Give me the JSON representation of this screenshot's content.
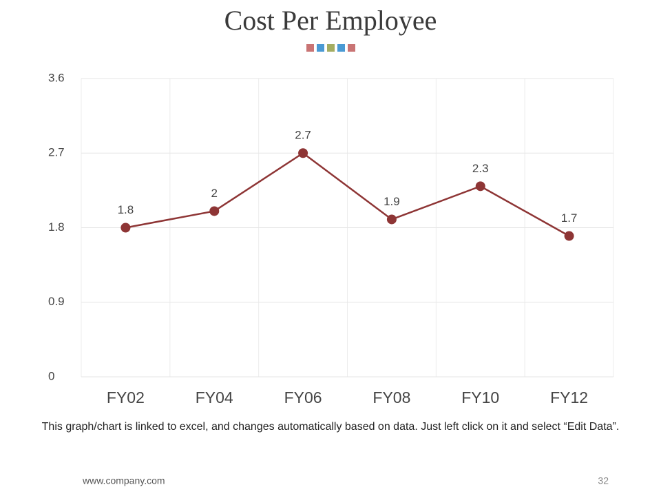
{
  "chart_data": {
    "type": "line",
    "title": "Cost Per Employee",
    "categories": [
      "FY02",
      "FY04",
      "FY06",
      "FY08",
      "FY10",
      "FY12"
    ],
    "values": [
      1.8,
      2,
      2.7,
      1.9,
      2.3,
      1.7
    ],
    "color": "#8e3535",
    "ylim": [
      0,
      3.6
    ],
    "yticks": [
      0,
      0.9,
      1.8,
      2.7,
      3.6
    ],
    "grid": true,
    "data_labels": true
  },
  "caption": "This graph/chart is linked to excel, and changes automatically based on data. Just left click on it and select “Edit Data”.",
  "footer": {
    "website": "www.company.com",
    "page_number": "32"
  }
}
